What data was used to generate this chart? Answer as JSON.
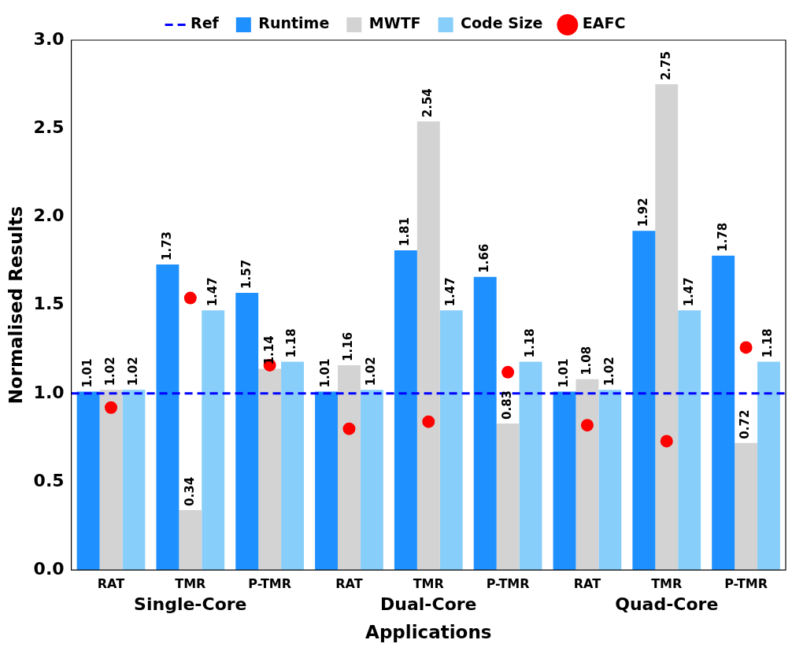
{
  "chart_data": {
    "type": "bar",
    "categories": [
      "RAT",
      "TMR",
      "P-TMR",
      "RAT",
      "TMR",
      "P-TMR",
      "RAT",
      "TMR",
      "P-TMR"
    ],
    "xlabel": "Applications",
    "ylabel": "Normalised Results",
    "annotations": [
      "Single-Core",
      "Dual-Core",
      "Quad-Core"
    ],
    "series": [
      {
        "name": "Runtime",
        "color": "#1e90ff",
        "values": [
          1.01,
          1.73,
          1.57,
          1.01,
          1.81,
          1.66,
          1.01,
          1.92,
          1.78
        ],
        "value_labels": [
          "1.01",
          "1.73",
          "1.57",
          "1.01",
          "1.81",
          "1.66",
          "1.01",
          "1.92",
          "1.78"
        ]
      },
      {
        "name": "MWTF",
        "color": "#d3d3d3",
        "values": [
          1.02,
          0.34,
          1.14,
          1.16,
          2.54,
          0.83,
          1.08,
          2.75,
          0.72
        ],
        "value_labels": [
          "1.02",
          "0.34",
          "1.14",
          "1.16",
          "2.54",
          "0.83",
          "1.08",
          "2.75",
          "0.72"
        ]
      },
      {
        "name": "Code Size",
        "color": "#87cefa",
        "values": [
          1.02,
          1.47,
          1.18,
          1.02,
          1.47,
          1.18,
          1.02,
          1.47,
          1.18
        ],
        "value_labels": [
          "1.02",
          "1.47",
          "1.18",
          "1.02",
          "1.47",
          "1.18",
          "1.02",
          "1.47",
          "1.18"
        ]
      },
      {
        "name": "EAFC",
        "type": "scatter",
        "color": "#ff0000",
        "marker": "circle",
        "values": [
          0.92,
          1.54,
          1.16,
          0.8,
          0.84,
          1.12,
          0.82,
          0.73,
          1.26
        ]
      }
    ],
    "ref_lines": [
      {
        "axis": "y",
        "value": 1.0,
        "label": "Ref",
        "color": "#0000ff",
        "line_style": "dashed"
      }
    ],
    "ylim": [
      0,
      3.0
    ],
    "yticks": [
      {
        "value": 0,
        "label": "0.0"
      },
      {
        "value": 0.5,
        "label": "0.5"
      },
      {
        "value": 1.0,
        "label": "1.0"
      },
      {
        "value": 1.5,
        "label": "1.5"
      },
      {
        "value": 2.0,
        "label": "2.0"
      },
      {
        "value": 2.5,
        "label": "2.5"
      },
      {
        "value": 3.0,
        "label": "3.0"
      }
    ],
    "grid": false,
    "legend": "top"
  }
}
